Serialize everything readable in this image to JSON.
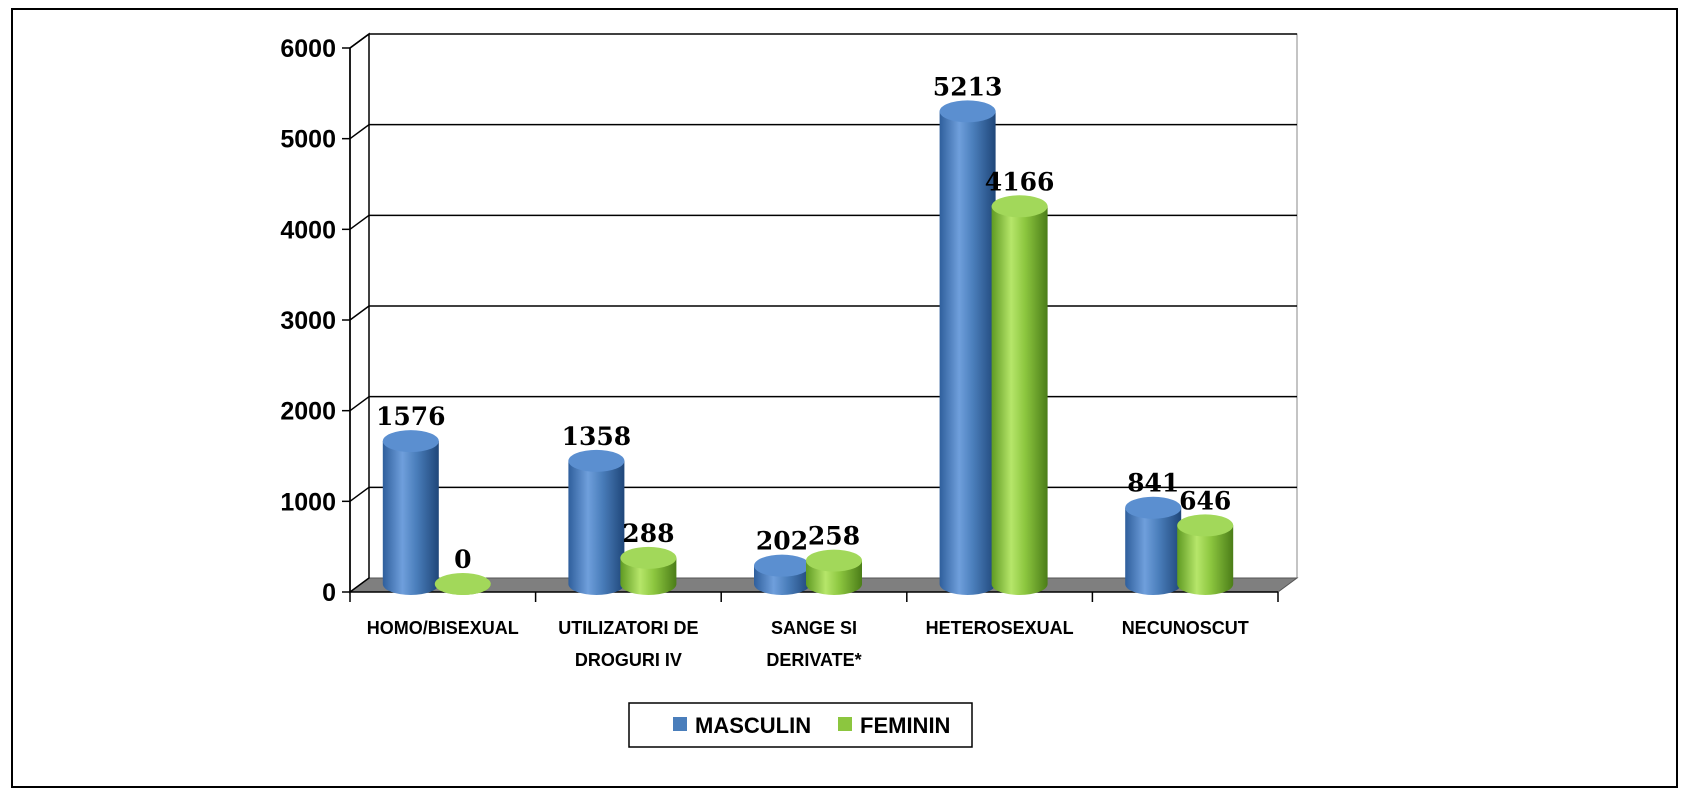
{
  "chart_data": {
    "type": "bar",
    "categories": [
      [
        "HOMO/BISEXUAL"
      ],
      [
        "UTILIZATORI DE",
        "DROGURI IV"
      ],
      [
        "SANGE SI",
        "DERIVATE*"
      ],
      [
        "HETEROSEXUAL"
      ],
      [
        "NECUNOSCUT"
      ]
    ],
    "series": [
      {
        "name": "MASCULIN",
        "values": [
          1576,
          1358,
          202,
          5213,
          841
        ],
        "color": "#4a7ebb"
      },
      {
        "name": "FEMININ",
        "values": [
          0,
          288,
          258,
          4166,
          646
        ],
        "color": "#8cc63f"
      }
    ],
    "yticks": [
      0,
      1000,
      2000,
      3000,
      4000,
      5000,
      6000
    ],
    "ylim": [
      0,
      6000
    ],
    "title": "",
    "xlabel": "",
    "ylabel": "",
    "grid": true,
    "legend": "bottom",
    "style": "3d-cylinder"
  }
}
